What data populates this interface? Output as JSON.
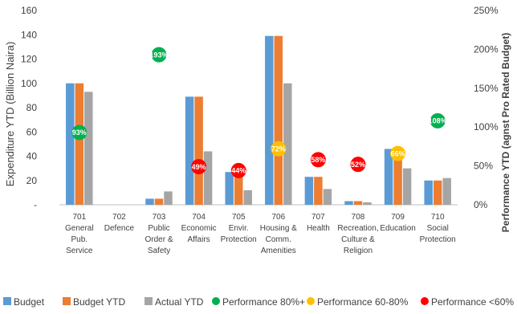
{
  "chart_data": {
    "type": "bar",
    "ylabel": "Expenditure YTD (Billion Naira)",
    "y2label": "Performance YTD (agnst Pro Rated Budget)",
    "ylim": [
      0,
      160
    ],
    "y2lim": [
      0,
      250
    ],
    "y_ticks": [
      "-",
      "20",
      "40",
      "60",
      "80",
      "100",
      "120",
      "140",
      "160"
    ],
    "y2_ticks": [
      "0%",
      "50%",
      "100%",
      "150%",
      "200%",
      "250%"
    ],
    "grid": false,
    "legend_position": "bottom",
    "colors": {
      "budget": "#5B9BD5",
      "budget_ytd": "#ED7D31",
      "actual_ytd": "#A5A5A5",
      "perf_high": "#00B050",
      "perf_mid": "#FFC000",
      "perf_low": "#FF0000"
    },
    "categories": [
      [
        "701",
        "General",
        "Pub.",
        "Service"
      ],
      [
        "702",
        "Defence"
      ],
      [
        "703",
        "Public",
        "Order &",
        "Safety"
      ],
      [
        "704",
        "Economic",
        "Affairs"
      ],
      [
        "705",
        "Envir.",
        "Protection"
      ],
      [
        "706",
        "Housing &",
        "Comm.",
        "Amenities"
      ],
      [
        "707",
        "Health"
      ],
      [
        "708",
        "Recreation,",
        "Culture &",
        "Religion"
      ],
      [
        "709",
        "Education"
      ],
      [
        "710",
        "Social",
        "Protection"
      ]
    ],
    "series": [
      {
        "name": "Budget",
        "values": [
          100,
          0,
          5,
          89,
          27,
          139,
          23,
          3,
          46,
          20
        ]
      },
      {
        "name": "Budget YTD",
        "values": [
          100,
          0,
          5,
          89,
          27,
          139,
          23,
          3,
          46,
          20
        ]
      },
      {
        "name": "Actual YTD",
        "values": [
          93,
          0,
          11,
          44,
          12,
          100,
          13,
          2,
          30,
          22
        ]
      }
    ],
    "performance": {
      "values": [
        93,
        null,
        193,
        49,
        44,
        72,
        58,
        52,
        66,
        108
      ],
      "labels": [
        "93%",
        "",
        "193%",
        "49%",
        "44%",
        "72%",
        "58%",
        "52%",
        "66%",
        "108%"
      ],
      "bands": [
        "high",
        null,
        "high",
        "low",
        "low",
        "mid",
        "low",
        "low",
        "mid",
        "high"
      ]
    },
    "legend": [
      {
        "label": "Budget",
        "kind": "square",
        "color": "#5B9BD5"
      },
      {
        "label": "Budget YTD",
        "kind": "square",
        "color": "#ED7D31"
      },
      {
        "label": "Actual YTD",
        "kind": "square",
        "color": "#A5A5A5"
      },
      {
        "label": "Performance 80%+",
        "kind": "circle",
        "color": "#00B050"
      },
      {
        "label": "Performance 60-80%",
        "kind": "circle",
        "color": "#FFC000"
      },
      {
        "label": "Performance <60%",
        "kind": "circle",
        "color": "#FF0000"
      }
    ]
  }
}
